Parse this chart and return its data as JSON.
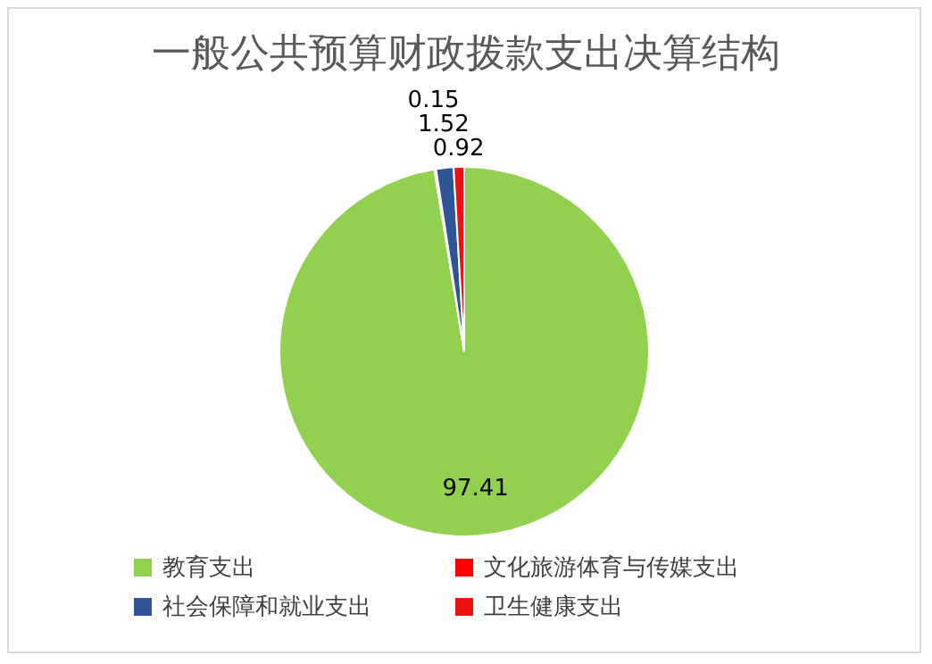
{
  "chart_data": {
    "type": "pie",
    "title": "一般公共预算财政拨款支出决算结构",
    "categories": [
      "教育支出",
      "文化旅游体育与传媒支出",
      "社会保障和就业支出",
      "卫生健康支出"
    ],
    "values": [
      97.41,
      0.15,
      1.52,
      0.92
    ],
    "colors": [
      "#92d050",
      "#ff0000",
      "#2f5597",
      "#ee1111"
    ],
    "data_labels": true,
    "legend": "bottom"
  }
}
